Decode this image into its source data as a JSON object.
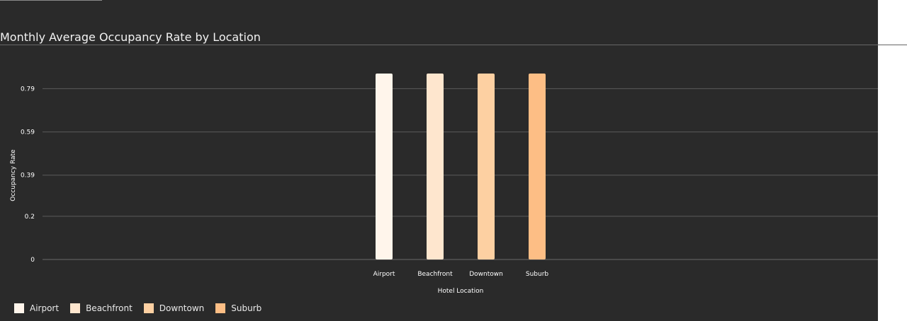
{
  "chart_data": {
    "type": "bar",
    "title": "Monthly Average Occupancy Rate by Location",
    "xlabel": "Hotel Location",
    "ylabel": "Occupancy Rate",
    "categories": [
      "Airport",
      "Beachfront",
      "Downtown",
      "Suburb"
    ],
    "values": [
      0.86,
      0.86,
      0.86,
      0.86
    ],
    "colors": [
      "#fff5eb",
      "#fee6ce",
      "#fdd0a2",
      "#fdbe85"
    ],
    "y_ticks": [
      "0",
      "0.2",
      "0.39",
      "0.59",
      "0.79"
    ],
    "ylim": [
      0,
      0.86
    ],
    "grid": true,
    "legend_position": "bottom-left"
  },
  "theme": {
    "background": "#2a2a2a",
    "text": "#f2f2f2",
    "grid": "#5a5a5a"
  }
}
